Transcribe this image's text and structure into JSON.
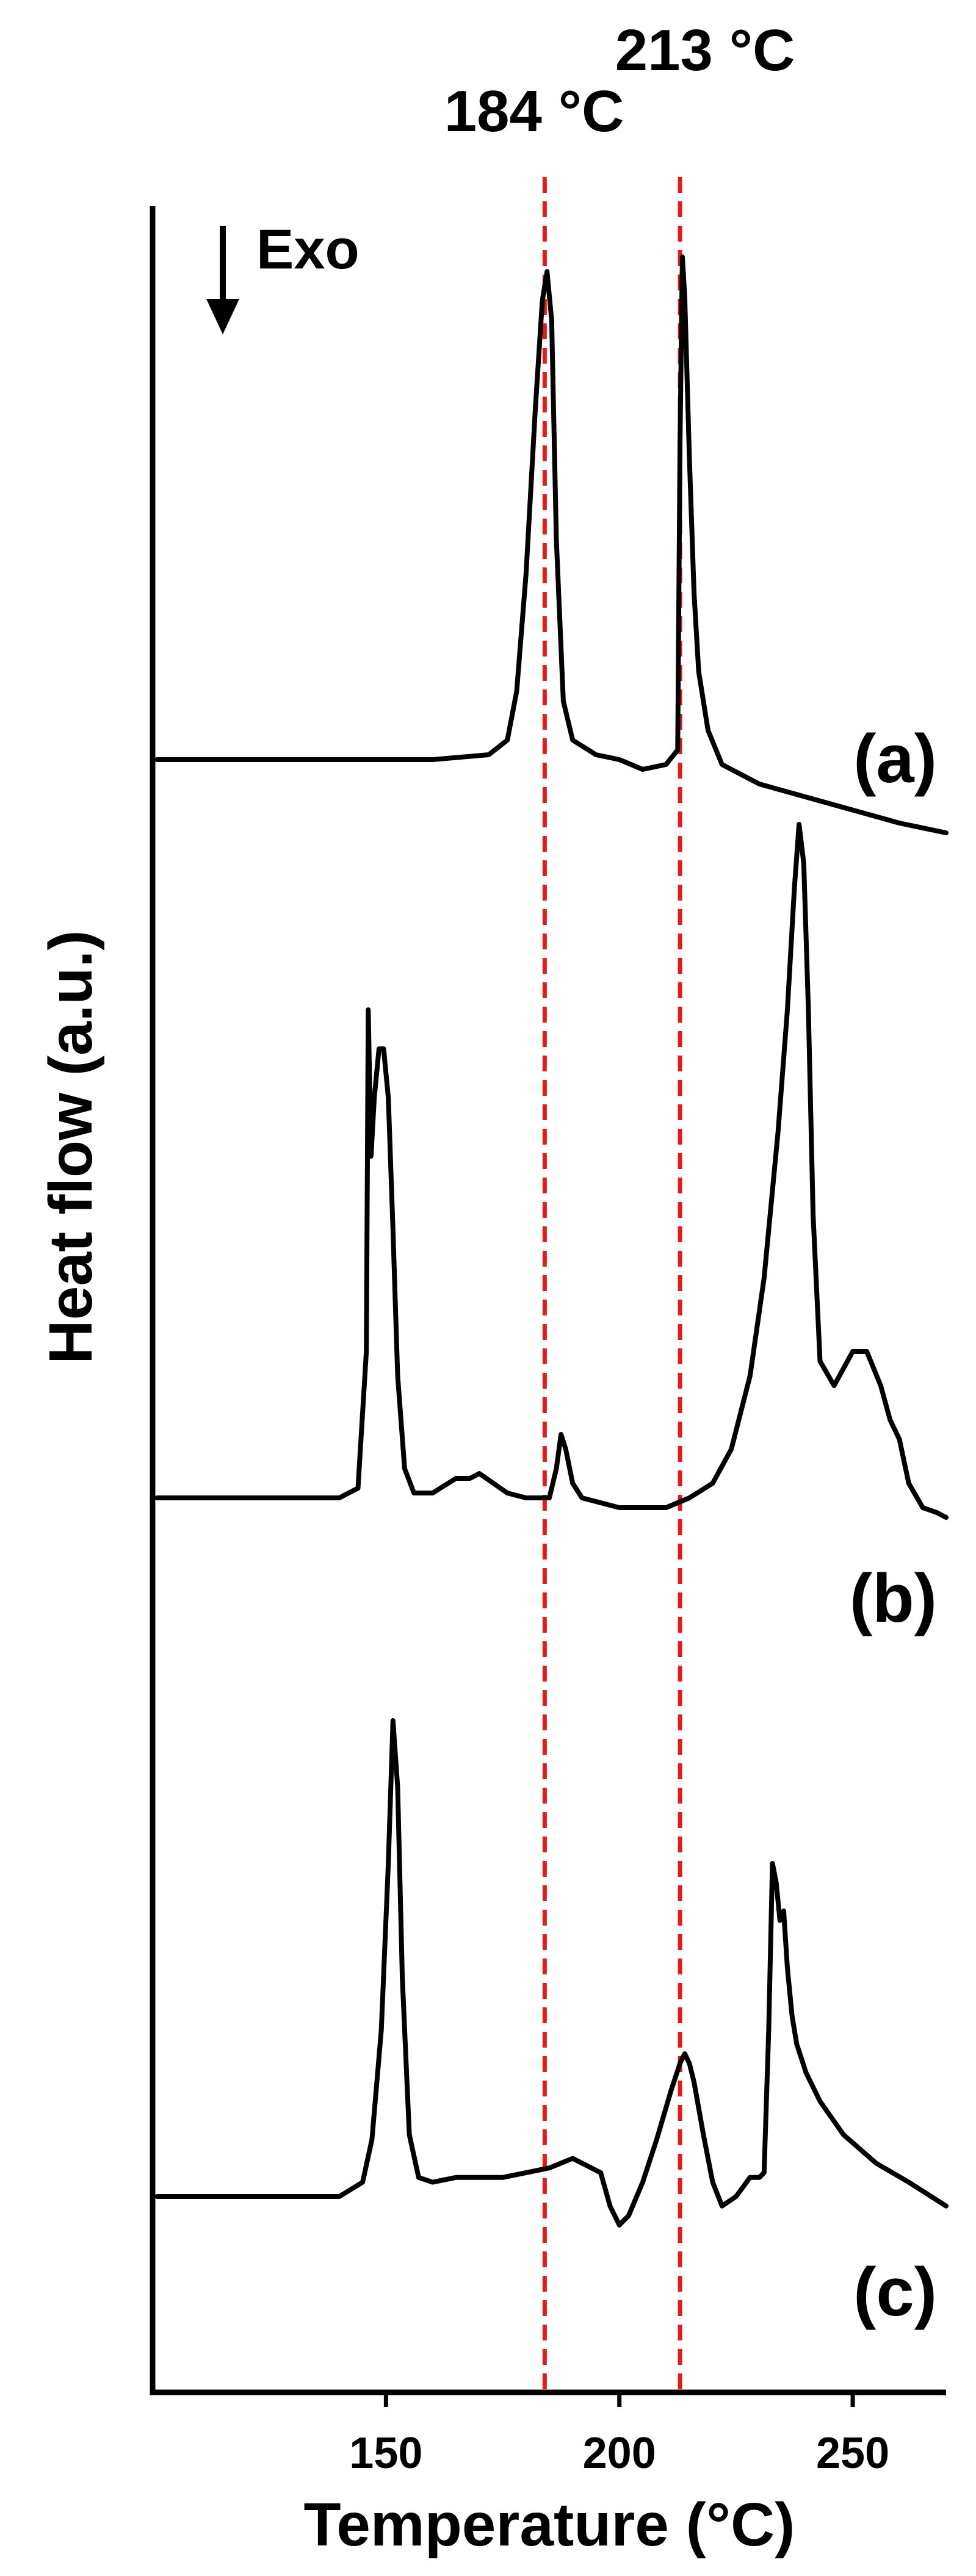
{
  "chart_data": {
    "type": "line",
    "xlabel": "Temperature (°C)",
    "ylabel": "Heat flow (a.u.)",
    "xlim": [
      100,
      270
    ],
    "x_ticks": [
      150,
      200,
      250
    ],
    "direction_label": "Exo",
    "reference_lines": [
      {
        "x": 184,
        "label": "184 °C",
        "color": "#e21b1b"
      },
      {
        "x": 213,
        "label": "213 °C",
        "color": "#e21b1b"
      }
    ],
    "series": [
      {
        "name": "(a)",
        "x": [
          101,
          120,
          140,
          160,
          172,
          176,
          178,
          180,
          182,
          183.5,
          184.5,
          185.5,
          186.5,
          188,
          190,
          195,
          200,
          205,
          210,
          212.5,
          213,
          213.5,
          214,
          215,
          216,
          217,
          219,
          222,
          230,
          245,
          260,
          270
        ],
        "value": [
          0,
          0,
          0,
          0,
          0.01,
          0.04,
          0.14,
          0.38,
          0.72,
          0.94,
          1.0,
          0.9,
          0.45,
          0.12,
          0.04,
          0.01,
          0,
          -0.02,
          -0.01,
          0.02,
          0.65,
          1.03,
          0.95,
          0.62,
          0.34,
          0.18,
          0.06,
          -0.01,
          -0.05,
          -0.09,
          -0.13,
          -0.15
        ]
      },
      {
        "name": "(b)",
        "x": [
          101,
          120,
          140,
          144,
          145.8,
          146.2,
          146.8,
          147.5,
          148.5,
          149.5,
          150.5,
          151.5,
          152.5,
          154,
          156,
          160,
          165,
          168,
          170,
          173,
          176,
          180,
          185,
          186.5,
          187.5,
          188.5,
          190,
          192,
          200,
          210,
          215,
          220,
          224,
          228,
          231,
          234,
          236,
          237.5,
          238.5,
          239.5,
          240.5,
          241.5,
          243,
          246,
          250,
          253,
          256,
          258,
          260,
          262,
          265,
          268,
          270
        ],
        "value": [
          0,
          0,
          0,
          0.02,
          0.3,
          1.0,
          0.7,
          0.82,
          0.92,
          0.92,
          0.82,
          0.55,
          0.25,
          0.06,
          0.01,
          0.01,
          0.04,
          0.04,
          0.05,
          0.03,
          0.01,
          0,
          0,
          0.06,
          0.13,
          0.1,
          0.03,
          0,
          -0.02,
          -0.02,
          0,
          0.03,
          0.1,
          0.25,
          0.45,
          0.75,
          1.0,
          1.25,
          1.38,
          1.3,
          1.0,
          0.58,
          0.28,
          0.23,
          0.3,
          0.3,
          0.23,
          0.16,
          0.12,
          0.03,
          -0.02,
          -0.03,
          -0.04
        ]
      },
      {
        "name": "(c)",
        "x": [
          101,
          130,
          140,
          145,
          147,
          149,
          150.5,
          151.5,
          152.5,
          153.5,
          155,
          157,
          160,
          165,
          175,
          185,
          190,
          194,
          196,
          198,
          200,
          202,
          205,
          208,
          211,
          213,
          214,
          215,
          216,
          218,
          220,
          222,
          225,
          228,
          230,
          231,
          232,
          232.8,
          233.6,
          234.4,
          235.2,
          236,
          237,
          238,
          240,
          243,
          248,
          255,
          262,
          270
        ],
        "value": [
          0,
          0,
          0,
          0.03,
          0.12,
          0.35,
          0.7,
          1.0,
          0.86,
          0.46,
          0.13,
          0.04,
          0.03,
          0.04,
          0.04,
          0.06,
          0.08,
          0.06,
          0.05,
          -0.02,
          -0.06,
          -0.04,
          0.03,
          0.12,
          0.22,
          0.28,
          0.3,
          0.28,
          0.24,
          0.13,
          0.03,
          -0.02,
          0,
          0.04,
          0.04,
          0.05,
          0.35,
          0.7,
          0.66,
          0.58,
          0.6,
          0.48,
          0.38,
          0.32,
          0.26,
          0.2,
          0.13,
          0.07,
          0.03,
          -0.02
        ]
      }
    ]
  }
}
